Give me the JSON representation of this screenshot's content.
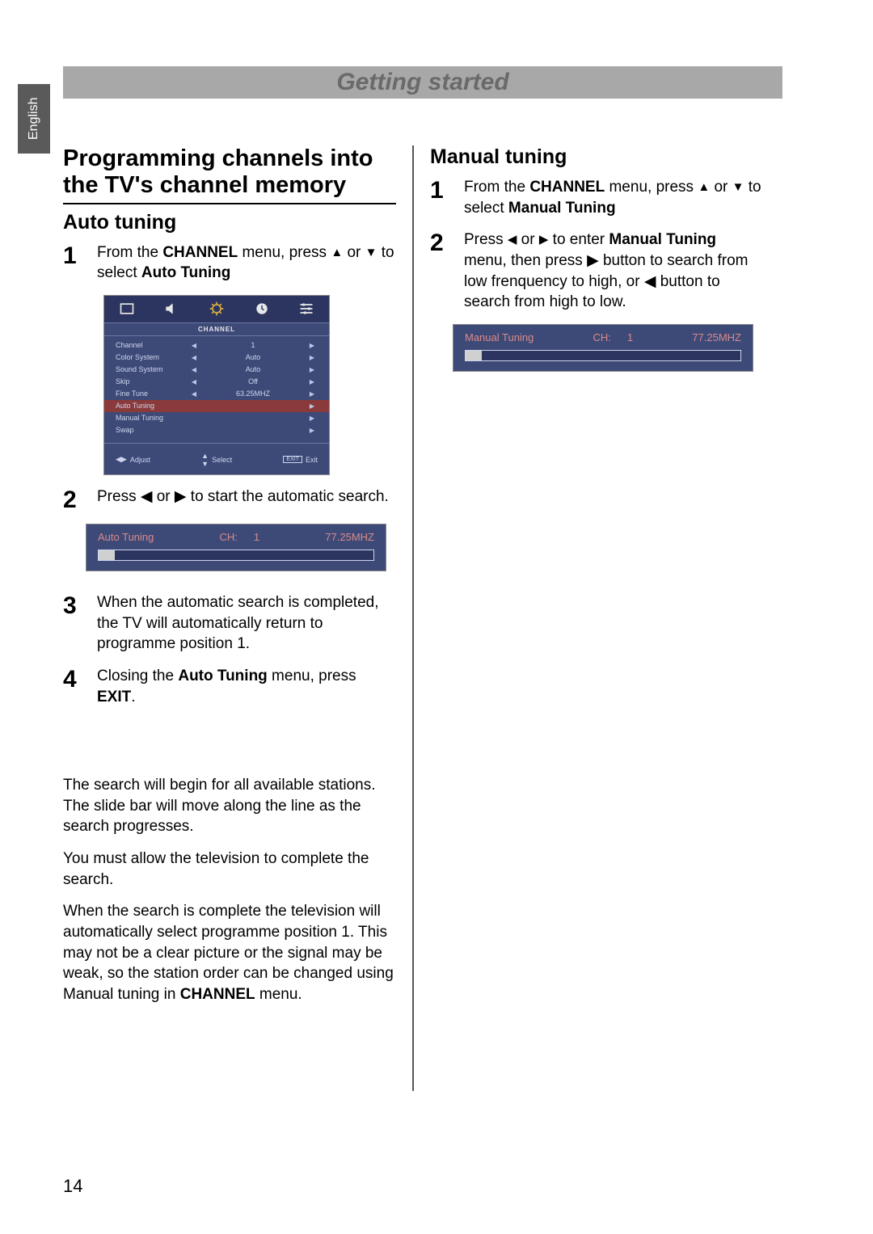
{
  "side_tab": "English",
  "header": "Getting started",
  "left": {
    "h1": "Programming channels into the TV's channel memory",
    "h2": "Auto tuning",
    "step1_a": "From the ",
    "step1_b": "CHANNEL",
    "step1_c": " menu, press ",
    "step1_d": " or ",
    "step1_e": " to select ",
    "step1_f": "Auto Tuning",
    "step2": "Press ◀ or ▶ to start the automatic search.",
    "step3": "When the automatic search is completed, the TV will automatically return to programme position 1.",
    "step4_a": "Closing the ",
    "step4_b": "Auto Tuning",
    "step4_c": " menu, press ",
    "step4_d": "EXIT",
    "step4_e": ".",
    "para1": "The search will begin for all available stations. The slide bar will move along the line as the search progresses.",
    "para2": "You must allow the television to complete the search.",
    "para3_a": "When the search is complete the television will automatically select programme position 1. This may not be a clear picture or the signal may be weak, so the station order can be changed using Manual tuning in ",
    "para3_b": "CHANNEL",
    "para3_c": "  menu."
  },
  "right": {
    "h2": "Manual tuning",
    "step1_a": "From the ",
    "step1_b": "CHANNEL",
    "step1_c": " menu, press ",
    "step1_d": " or ",
    "step1_e": " to select ",
    "step1_f": "Manual Tuning",
    "step2_a": "Press ",
    "step2_b": " or ",
    "step2_c": " to enter ",
    "step2_d": "Manual Tuning",
    "step2_e": " menu, then press ▶ button to search from low frenquency to high, or ◀ button to search from high to low."
  },
  "osd": {
    "title": "CHANNEL",
    "rows": [
      {
        "label": "Channel",
        "left": true,
        "val": "1",
        "right": true,
        "hl": false
      },
      {
        "label": "Color System",
        "left": true,
        "val": "Auto",
        "right": true,
        "hl": false
      },
      {
        "label": "Sound System",
        "left": true,
        "val": "Auto",
        "right": true,
        "hl": false
      },
      {
        "label": "Skip",
        "left": true,
        "val": "Off",
        "right": true,
        "hl": false
      },
      {
        "label": "Fine Tune",
        "left": true,
        "val": "63.25MHZ",
        "right": true,
        "hl": false
      },
      {
        "label": "Auto Tuning",
        "left": false,
        "val": "",
        "right": true,
        "hl": true
      },
      {
        "label": "Manual Tuning",
        "left": false,
        "val": "",
        "right": true,
        "hl": false
      },
      {
        "label": "Swap",
        "left": false,
        "val": "",
        "right": true,
        "hl": false
      }
    ],
    "footer": {
      "adjust": "Adjust",
      "select": "Select",
      "exit": "Exit",
      "exit_box": "EXIT"
    },
    "colors": {
      "bg": "#3d4a78",
      "tab_bg": "#2b3560",
      "text": "#cfd6ee",
      "highlight": "#8a3a3a",
      "icon_fill": "#e8e8e8",
      "active_icon": "#e0b040"
    }
  },
  "auto_bar": {
    "title": "Auto Tuning",
    "ch_label": "CH:",
    "ch_val": "1",
    "freq": "77.25MHZ",
    "fill_pct": 6
  },
  "manual_bar": {
    "title": "Manual Tuning",
    "ch_label": "CH:",
    "ch_val": "1",
    "freq": "77.25MHZ",
    "fill_pct": 6
  },
  "page_number": "14"
}
